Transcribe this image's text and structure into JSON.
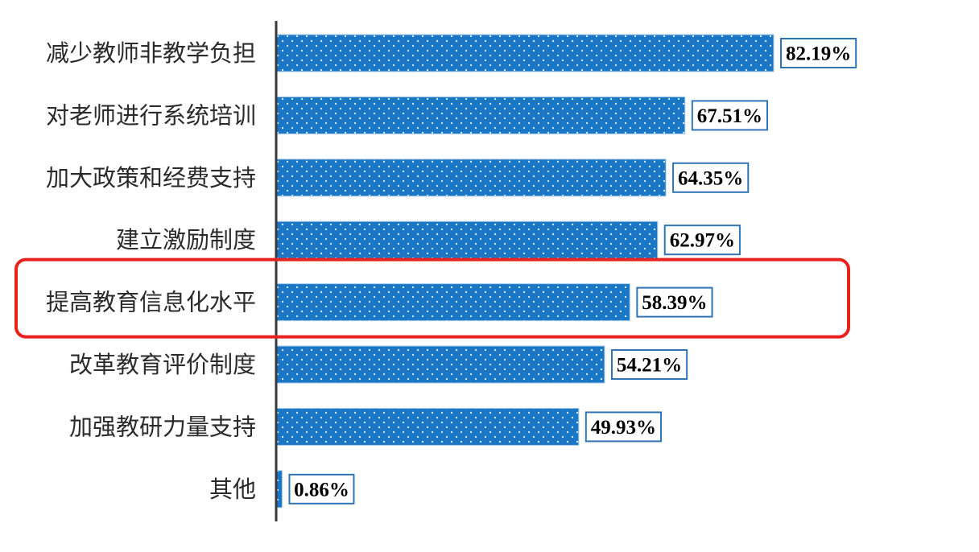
{
  "chart_data": {
    "type": "bar",
    "orientation": "horizontal",
    "categories": [
      "减少教师非教学负担",
      "对老师进行系统培训",
      "加大政策和经费支持",
      "建立激励制度",
      "提高教育信息化水平",
      "改革教育评价制度",
      "加强教研力量支持",
      "其他"
    ],
    "values": [
      82.19,
      67.51,
      64.35,
      62.97,
      58.39,
      54.21,
      49.93,
      0.86
    ],
    "labels": [
      "82.19%",
      "67.51%",
      "64.35%",
      "62.97%",
      "58.39%",
      "54.21%",
      "49.93%",
      "0.86%"
    ],
    "unit": "%",
    "title": "",
    "xlabel": "",
    "ylabel": "",
    "xlim": [
      0,
      100
    ],
    "grid": false,
    "highlighted_category": "提高教育信息化水平",
    "colors": {
      "bar": "#1a77c6",
      "bar_dots": "#cfe7f7",
      "label_box_border": "#2f75b5",
      "highlight": "#e8221c",
      "axis": "#3a3a3a"
    }
  }
}
